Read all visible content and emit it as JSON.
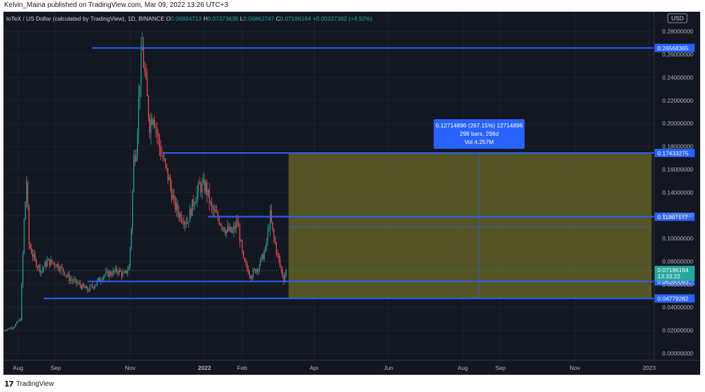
{
  "header": {
    "published_by": "Kelvin_Maina published on TradingView.com, Mar 09, 2022 13:26 UTC+3"
  },
  "footer": {
    "brand": "TradingView",
    "brand_icon": "tradingview-logo-icon"
  },
  "colors": {
    "background": "#131722",
    "up_candle": "#26a69a",
    "down_candle": "#ef5350",
    "hline": "#2962ff",
    "range_fill": "#6b6a2a",
    "last_price": "#26a69a"
  },
  "chart_data": {
    "type": "candlestick",
    "title": "IoTeX / US Dollar (calculated by TradingView), 1D, BINANCE",
    "ohlc": {
      "O_label": "O",
      "O": "0.06894713",
      "H_label": "H",
      "H": "0.07373635",
      "L_label": "L",
      "L": "0.06862747",
      "C_label": "C",
      "C": "0.07196164",
      "change": "+0.00337382 (+4.92%)"
    },
    "currency": "USD",
    "ylim": [
      0,
      0.29
    ],
    "y_ticks": [
      "0.28000000",
      "0.26000000",
      "0.24000000",
      "0.22000000",
      "0.20000000",
      "0.18000000",
      "0.16000000",
      "0.14000000",
      "0.12000000",
      "0.10000000",
      "0.08000000",
      "0.06000000",
      "0.04000000",
      "0.02000000",
      "0.00000000"
    ],
    "y_tick_values": [
      0.28,
      0.26,
      0.24,
      0.22,
      0.2,
      0.18,
      0.16,
      0.14,
      0.12,
      0.1,
      0.08,
      0.06,
      0.04,
      0.02,
      0.0
    ],
    "x_ticks": [
      "Aug",
      "Sep",
      "Nov",
      "2022",
      "Feb",
      "Apr",
      "Jun",
      "Aug",
      "Sep",
      "Nov",
      "2023"
    ],
    "x_tick_dates": [
      "2021-08-01",
      "2021-09-01",
      "2021-11-01",
      "2022-01-01",
      "2022-02-01",
      "2022-04-01",
      "2022-06-01",
      "2022-08-01",
      "2022-09-01",
      "2022-11-01",
      "2023-01-01"
    ],
    "x_range": [
      "2021-07-20",
      "2023-01-05"
    ],
    "price_path": [
      [
        "2021-07-20",
        0.02
      ],
      [
        "2021-07-28",
        0.023
      ],
      [
        "2021-08-03",
        0.03
      ],
      [
        "2021-08-06",
        0.115
      ],
      [
        "2021-08-08",
        0.15
      ],
      [
        "2021-08-10",
        0.095
      ],
      [
        "2021-08-15",
        0.08
      ],
      [
        "2021-08-20",
        0.072
      ],
      [
        "2021-08-25",
        0.08
      ],
      [
        "2021-09-01",
        0.078
      ],
      [
        "2021-09-07",
        0.072
      ],
      [
        "2021-09-12",
        0.065
      ],
      [
        "2021-09-20",
        0.06
      ],
      [
        "2021-09-27",
        0.055
      ],
      [
        "2021-10-03",
        0.06
      ],
      [
        "2021-10-10",
        0.068
      ],
      [
        "2021-10-17",
        0.07
      ],
      [
        "2021-10-22",
        0.072
      ],
      [
        "2021-10-27",
        0.068
      ],
      [
        "2021-10-31",
        0.075
      ],
      [
        "2021-11-02",
        0.11
      ],
      [
        "2021-11-04",
        0.17
      ],
      [
        "2021-11-06",
        0.18
      ],
      [
        "2021-11-09",
        0.24
      ],
      [
        "2021-11-11",
        0.265
      ],
      [
        "2021-11-14",
        0.23
      ],
      [
        "2021-11-17",
        0.2
      ],
      [
        "2021-11-20",
        0.21
      ],
      [
        "2021-11-25",
        0.18
      ],
      [
        "2021-11-29",
        0.165
      ],
      [
        "2021-12-03",
        0.15
      ],
      [
        "2021-12-07",
        0.13
      ],
      [
        "2021-12-12",
        0.12
      ],
      [
        "2021-12-18",
        0.115
      ],
      [
        "2021-12-24",
        0.135
      ],
      [
        "2021-12-28",
        0.145
      ],
      [
        "2022-01-02",
        0.145
      ],
      [
        "2022-01-07",
        0.125
      ],
      [
        "2022-01-12",
        0.118
      ],
      [
        "2022-01-18",
        0.108
      ],
      [
        "2022-01-24",
        0.105
      ],
      [
        "2022-01-28",
        0.115
      ],
      [
        "2022-02-02",
        0.08
      ],
      [
        "2022-02-08",
        0.068
      ],
      [
        "2022-02-14",
        0.075
      ],
      [
        "2022-02-20",
        0.09
      ],
      [
        "2022-02-24",
        0.12
      ],
      [
        "2022-02-26",
        0.105
      ],
      [
        "2022-03-01",
        0.09
      ],
      [
        "2022-03-04",
        0.076
      ],
      [
        "2022-03-07",
        0.065
      ],
      [
        "2022-03-09",
        0.072
      ]
    ],
    "hlines": [
      {
        "label": "0.26568365",
        "value": 0.26568365,
        "from": "2021-10-01"
      },
      {
        "label": "0.17433275",
        "value": 0.17433275,
        "from": "2021-11-28"
      },
      {
        "label": "0.11887177",
        "value": 0.11887177,
        "from": "2022-01-04"
      },
      {
        "label": "0.06260093",
        "value": 0.06260093,
        "from": "2021-09-27"
      },
      {
        "label": "0.04779282",
        "value": 0.04779282,
        "from": "2021-08-22"
      }
    ],
    "range_box": {
      "from": "2022-03-11",
      "to": "2023-01-03",
      "low": 0.04779282,
      "high": 0.17433275,
      "inner_line": 0.11
    },
    "measure_tooltip": {
      "line1": "0.12714896 (267.15%) 12714896",
      "line2": "298 bars, 298d",
      "line3": "Vol 4.257M"
    },
    "last_price": {
      "value": 0.07196164,
      "label": "0.07196164",
      "countdown": "13:33:22"
    }
  }
}
